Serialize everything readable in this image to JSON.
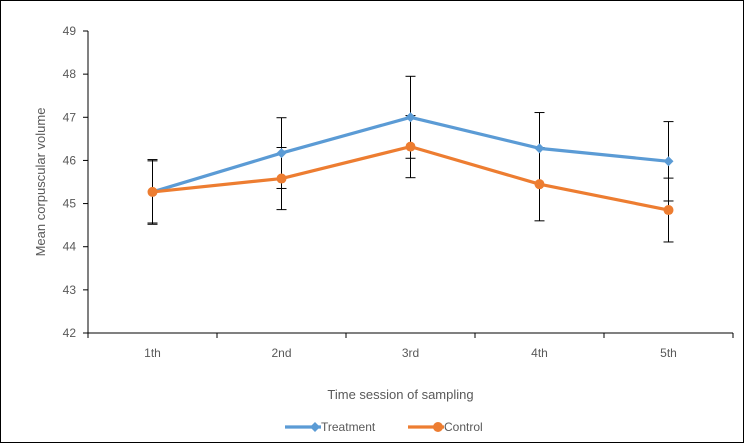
{
  "chart_data": {
    "type": "line",
    "categories": [
      "1th",
      "2nd",
      "3rd",
      "4th",
      "5th"
    ],
    "ylabel": "Mean corpuscular volume",
    "xlabel": "Time session of sampling",
    "ylim": [
      42,
      49
    ],
    "yticks": [
      42,
      43,
      44,
      45,
      46,
      47,
      48,
      49
    ],
    "grid": false,
    "legend": "bottom",
    "series": [
      {
        "name": "Treatment",
        "color": "#5b9bd5",
        "marker": "diamond",
        "values": [
          45.27,
          46.17,
          47.0,
          46.28,
          45.98
        ],
        "error": [
          0.75,
          0.82,
          0.95,
          0.83,
          0.92
        ]
      },
      {
        "name": "Control",
        "color": "#ed7d31",
        "marker": "circle",
        "values": [
          45.27,
          45.58,
          46.32,
          45.45,
          44.85
        ],
        "error": [
          0.72,
          0.72,
          0.72,
          0.85,
          0.74
        ]
      }
    ]
  }
}
